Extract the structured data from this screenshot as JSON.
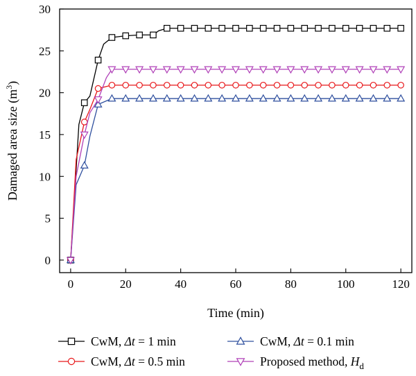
{
  "chart_data": {
    "type": "line",
    "title": "",
    "xlabel": "Time (min)",
    "ylabel": "Damaged area size (m",
    "ylabel_sup": "3",
    "ylabel_close": ")",
    "xlim": [
      -4,
      124
    ],
    "ylim": [
      -1.5,
      30
    ],
    "xticks": [
      0,
      20,
      40,
      60,
      80,
      100,
      120
    ],
    "yticks": [
      0,
      5,
      10,
      15,
      20,
      25,
      30
    ],
    "grid": false,
    "legend_position": "bottom",
    "series": [
      {
        "name_parts": [
          "CwM, ",
          "Δt",
          " = 1 min"
        ],
        "color": "#000000",
        "marker": "square",
        "points": [
          [
            0,
            0
          ],
          [
            3,
            16.2
          ],
          [
            5,
            18.8
          ],
          [
            7,
            19.6
          ],
          [
            10,
            23.9
          ],
          [
            12,
            25.8
          ],
          [
            15,
            26.6
          ],
          [
            20,
            26.8
          ],
          [
            25,
            26.9
          ],
          [
            30,
            26.9
          ],
          [
            32,
            27.4
          ],
          [
            35,
            27.7
          ],
          [
            40,
            27.7
          ],
          [
            45,
            27.7
          ],
          [
            50,
            27.7
          ],
          [
            55,
            27.7
          ],
          [
            60,
            27.7
          ],
          [
            65,
            27.7
          ],
          [
            70,
            27.7
          ],
          [
            75,
            27.7
          ],
          [
            80,
            27.7
          ],
          [
            85,
            27.7
          ],
          [
            90,
            27.7
          ],
          [
            95,
            27.7
          ],
          [
            100,
            27.7
          ],
          [
            105,
            27.7
          ],
          [
            110,
            27.7
          ],
          [
            115,
            27.7
          ],
          [
            120,
            27.7
          ]
        ],
        "marker_x": [
          0,
          5,
          10,
          15,
          20,
          25,
          30,
          35,
          40,
          45,
          50,
          55,
          60,
          65,
          70,
          75,
          80,
          85,
          90,
          95,
          100,
          105,
          110,
          115,
          120
        ]
      },
      {
        "name_parts": [
          "CwM, ",
          "Δt",
          " = 0.5 min"
        ],
        "color": "#e8171a",
        "marker": "circle",
        "points": [
          [
            0,
            0
          ],
          [
            2,
            12
          ],
          [
            5,
            16.5
          ],
          [
            7,
            18
          ],
          [
            10,
            20.5
          ],
          [
            15,
            20.9
          ],
          [
            20,
            20.9
          ],
          [
            25,
            20.9
          ],
          [
            30,
            20.9
          ],
          [
            35,
            20.9
          ],
          [
            40,
            20.9
          ],
          [
            45,
            20.9
          ],
          [
            50,
            20.9
          ],
          [
            55,
            20.9
          ],
          [
            60,
            20.9
          ],
          [
            65,
            20.9
          ],
          [
            70,
            20.9
          ],
          [
            75,
            20.9
          ],
          [
            80,
            20.9
          ],
          [
            85,
            20.9
          ],
          [
            90,
            20.9
          ],
          [
            95,
            20.9
          ],
          [
            100,
            20.9
          ],
          [
            105,
            20.9
          ],
          [
            110,
            20.9
          ],
          [
            115,
            20.9
          ],
          [
            120,
            20.9
          ]
        ],
        "marker_x": [
          0,
          5,
          10,
          15,
          20,
          25,
          30,
          35,
          40,
          45,
          50,
          55,
          60,
          65,
          70,
          75,
          80,
          85,
          90,
          95,
          100,
          105,
          110,
          115,
          120
        ]
      },
      {
        "name_parts": [
          "CwM, ",
          "Δt",
          " = 0.1 min"
        ],
        "color": "#2e4f9e",
        "marker": "triangle-up",
        "points": [
          [
            0,
            0
          ],
          [
            2,
            9
          ],
          [
            5,
            11.3
          ],
          [
            7,
            14.8
          ],
          [
            10,
            18.6
          ],
          [
            15,
            19.3
          ],
          [
            20,
            19.3
          ],
          [
            25,
            19.3
          ],
          [
            30,
            19.3
          ],
          [
            35,
            19.3
          ],
          [
            40,
            19.3
          ],
          [
            45,
            19.3
          ],
          [
            50,
            19.3
          ],
          [
            55,
            19.3
          ],
          [
            60,
            19.3
          ],
          [
            65,
            19.3
          ],
          [
            70,
            19.3
          ],
          [
            75,
            19.3
          ],
          [
            80,
            19.3
          ],
          [
            85,
            19.3
          ],
          [
            90,
            19.3
          ],
          [
            95,
            19.3
          ],
          [
            100,
            19.3
          ],
          [
            105,
            19.3
          ],
          [
            110,
            19.3
          ],
          [
            115,
            19.3
          ],
          [
            120,
            19.3
          ]
        ],
        "marker_x": [
          0,
          5,
          10,
          15,
          20,
          25,
          30,
          35,
          40,
          45,
          50,
          55,
          60,
          65,
          70,
          75,
          80,
          85,
          90,
          95,
          100,
          105,
          110,
          115,
          120
        ]
      },
      {
        "name_parts": [
          "Proposed method, ",
          "H",
          "d"
        ],
        "color": "#b040b8",
        "marker": "triangle-down",
        "points": [
          [
            0,
            0
          ],
          [
            2,
            10
          ],
          [
            5,
            15
          ],
          [
            7,
            17.6
          ],
          [
            10,
            19.2
          ],
          [
            13,
            21.8
          ],
          [
            15,
            22.8
          ],
          [
            20,
            22.8
          ],
          [
            25,
            22.8
          ],
          [
            30,
            22.8
          ],
          [
            35,
            22.8
          ],
          [
            40,
            22.8
          ],
          [
            45,
            22.8
          ],
          [
            50,
            22.8
          ],
          [
            55,
            22.8
          ],
          [
            60,
            22.8
          ],
          [
            65,
            22.8
          ],
          [
            70,
            22.8
          ],
          [
            75,
            22.8
          ],
          [
            80,
            22.8
          ],
          [
            85,
            22.8
          ],
          [
            90,
            22.8
          ],
          [
            95,
            22.8
          ],
          [
            100,
            22.8
          ],
          [
            105,
            22.8
          ],
          [
            110,
            22.8
          ],
          [
            115,
            22.8
          ],
          [
            120,
            22.8
          ]
        ],
        "marker_x": [
          0,
          5,
          10,
          15,
          20,
          25,
          30,
          35,
          40,
          45,
          50,
          55,
          60,
          65,
          70,
          75,
          80,
          85,
          90,
          95,
          100,
          105,
          110,
          115,
          120
        ]
      }
    ]
  }
}
